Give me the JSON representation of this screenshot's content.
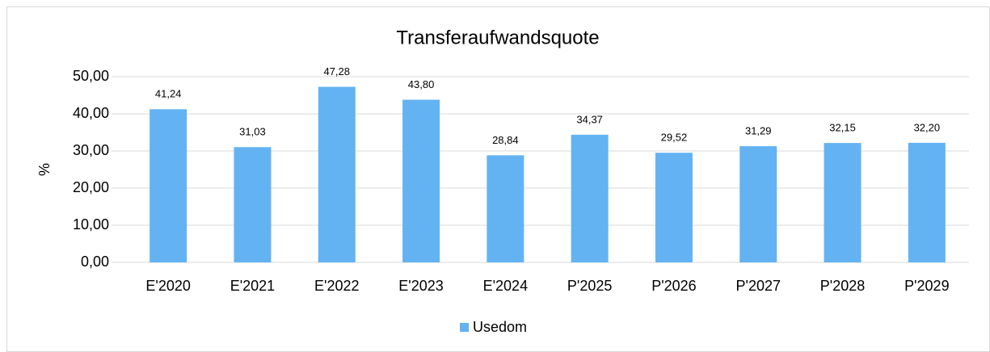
{
  "chart_data": {
    "type": "bar",
    "title": "Transferaufwandsquote",
    "y_label": "%",
    "categories": [
      "E'2020",
      "E'2021",
      "E'2022",
      "E'2023",
      "E'2024",
      "P'2025",
      "P'2026",
      "P'2027",
      "P'2028",
      "P'2029"
    ],
    "series": [
      {
        "name": "Usedom",
        "color": "#63b3f3",
        "values": [
          41.24,
          31.03,
          47.28,
          43.8,
          28.84,
          34.37,
          29.52,
          31.29,
          32.15,
          32.2
        ],
        "value_labels": [
          "41,24",
          "31,03",
          "47,28",
          "43,80",
          "28,84",
          "34,37",
          "29,52",
          "31,29",
          "32,15",
          "32,20"
        ]
      }
    ],
    "ylim": [
      0,
      50
    ],
    "yticks": [
      {
        "value": 0,
        "label": "0,00"
      },
      {
        "value": 10,
        "label": "10,00"
      },
      {
        "value": 20,
        "label": "20,00"
      },
      {
        "value": 30,
        "label": "30,00"
      },
      {
        "value": 40,
        "label": "40,00"
      },
      {
        "value": 50,
        "label": "50,00"
      }
    ],
    "grid": true,
    "legend": "bottom"
  }
}
